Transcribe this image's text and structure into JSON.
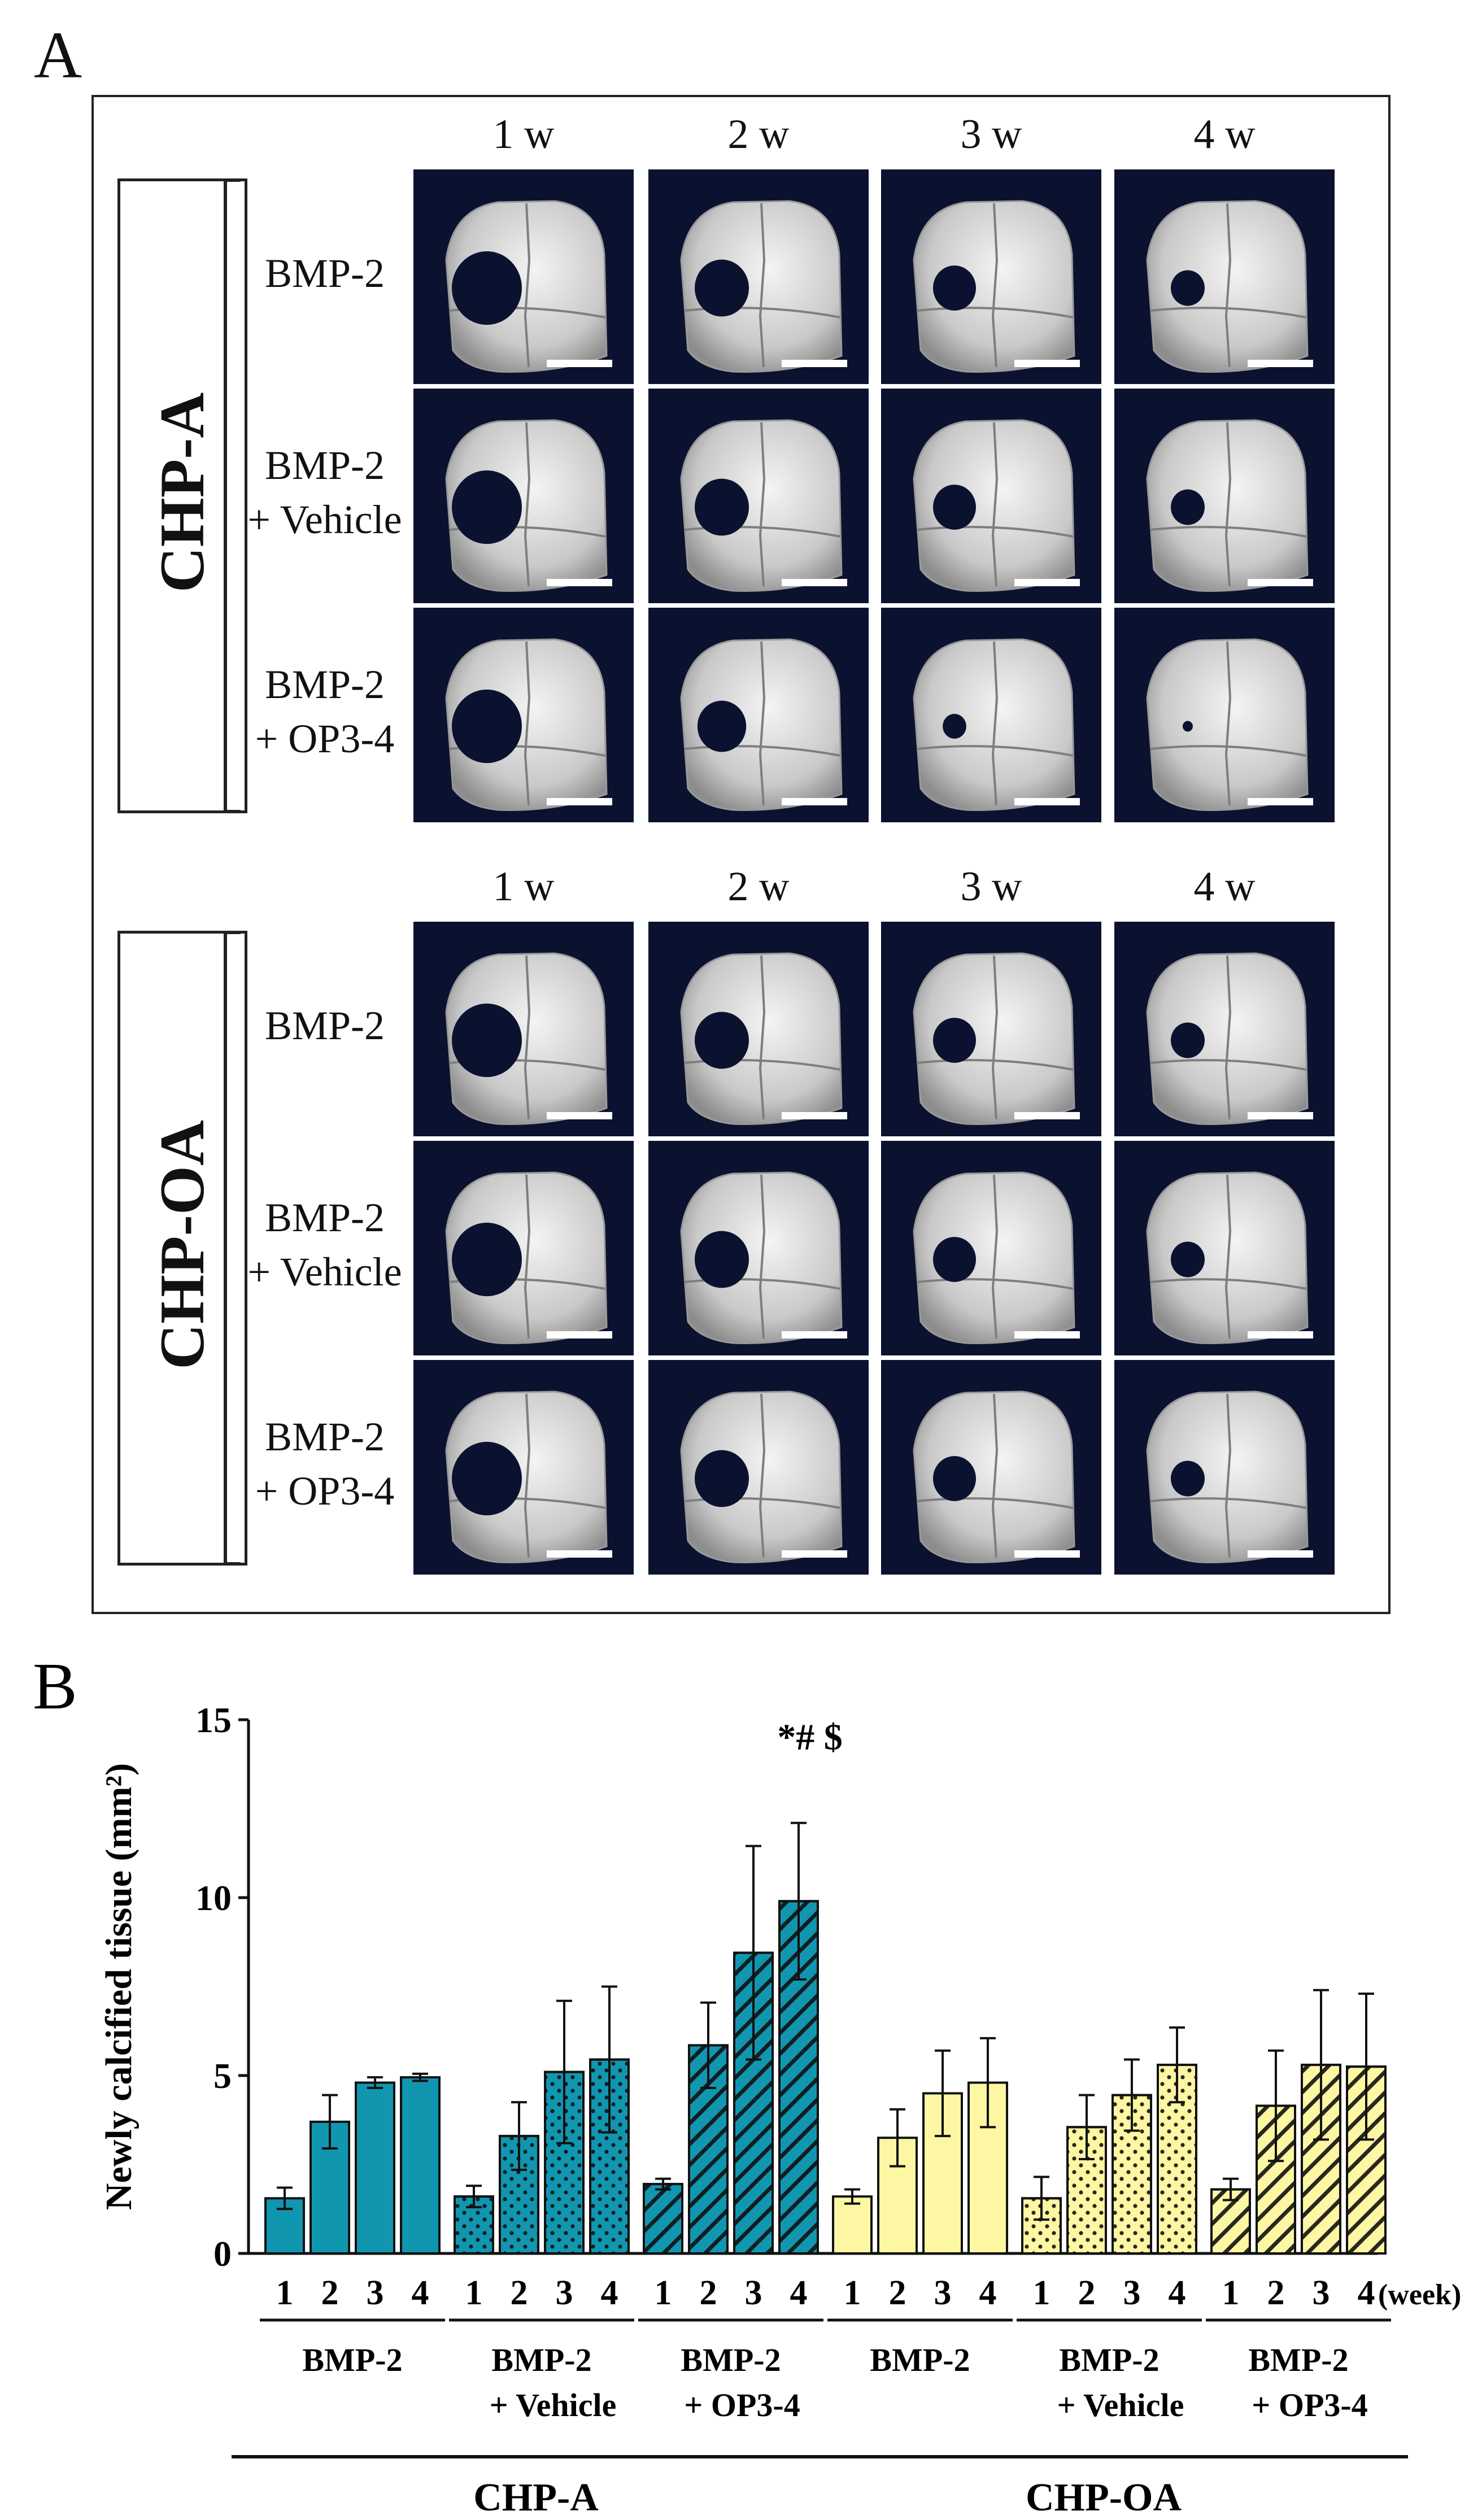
{
  "panel_a": {
    "letter": "A",
    "columns": [
      "1 w",
      "2 w",
      "3 w",
      "4 w"
    ],
    "groups": [
      {
        "name": "CHP-A",
        "rows": [
          [
            "BMP-2"
          ],
          [
            "BMP-2",
            "+ Vehicle"
          ],
          [
            "BMP-2",
            "+ OP3-4"
          ]
        ]
      },
      {
        "name": "CHP-OA",
        "rows": [
          [
            "BMP-2"
          ],
          [
            "BMP-2",
            "+ Vehicle"
          ],
          [
            "BMP-2",
            "+ OP3-4"
          ]
        ]
      }
    ]
  },
  "chart_data": {
    "type": "bar",
    "panel_letter": "B",
    "ylabel": "Newly calcified tissue (mm²)",
    "ylim": [
      0,
      15
    ],
    "yticks": [
      "0",
      "5",
      "10",
      "15"
    ],
    "week_ticks": [
      "1",
      "2",
      "3",
      "4"
    ],
    "week_unit": "(week)",
    "significance": "*# $",
    "outer_groups": [
      "CHP-A",
      "CHP-OA"
    ],
    "subgroups": [
      {
        "label1": "BMP-2",
        "label2": "",
        "outer": "CHP-A",
        "color": "#1196b0",
        "pattern": "solid",
        "values": [
          1.55,
          3.7,
          4.8,
          4.95
        ],
        "errors": [
          0.3,
          0.75,
          0.15,
          0.1
        ]
      },
      {
        "label1": "BMP-2",
        "label2": "+ Vehicle",
        "outer": "CHP-A",
        "color": "#1196b0",
        "pattern": "dots",
        "values": [
          1.6,
          3.3,
          5.1,
          5.45
        ],
        "errors": [
          0.3,
          0.95,
          2.0,
          2.05
        ]
      },
      {
        "label1": "BMP-2",
        "label2": "+ OP3-4",
        "outer": "CHP-A",
        "color": "#1196b0",
        "pattern": "hatch",
        "values": [
          1.95,
          5.85,
          8.45,
          9.9
        ],
        "errors": [
          0.15,
          1.2,
          3.0,
          2.2
        ]
      },
      {
        "label1": "BMP-2",
        "label2": "",
        "outer": "CHP-OA",
        "color": "#fdf6a2",
        "pattern": "solid",
        "values": [
          1.6,
          3.25,
          4.5,
          4.8
        ],
        "errors": [
          0.2,
          0.8,
          1.2,
          1.25
        ]
      },
      {
        "label1": "BMP-2",
        "label2": "+ Vehicle",
        "outer": "CHP-OA",
        "color": "#fdf6a2",
        "pattern": "dots",
        "values": [
          1.55,
          3.55,
          4.45,
          5.3
        ],
        "errors": [
          0.6,
          0.9,
          1.0,
          1.05
        ]
      },
      {
        "label1": "BMP-2",
        "label2": "+ OP3-4",
        "outer": "CHP-OA",
        "color": "#fdf6a2",
        "pattern": "hatch",
        "values": [
          1.8,
          4.15,
          5.3,
          5.25
        ],
        "errors": [
          0.3,
          1.55,
          2.1,
          2.05
        ]
      }
    ]
  }
}
